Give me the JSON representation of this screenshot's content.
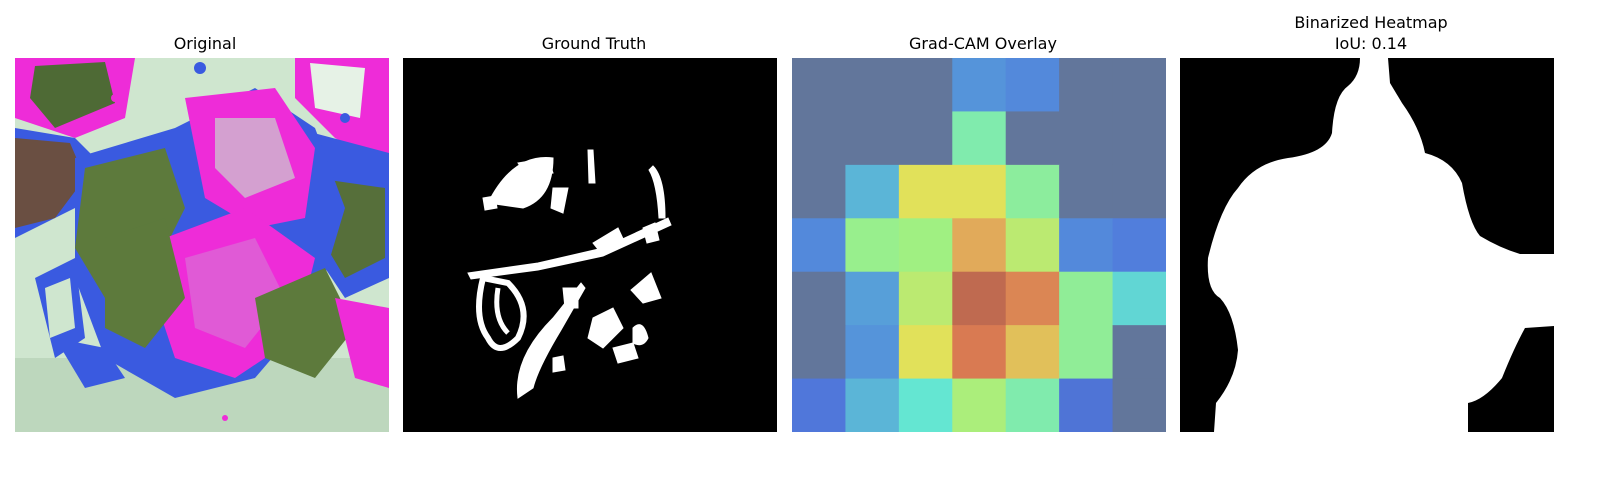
{
  "figure": {
    "panels": [
      {
        "title": "Original"
      },
      {
        "title": "Ground Truth"
      },
      {
        "title": "Grad-CAM Overlay"
      },
      {
        "title": "Binarized Heatmap",
        "subtitle": "IoU: 0.14"
      }
    ],
    "colors": {
      "background": "#ffffff",
      "mask_fg": "#ffffff",
      "mask_bg": "#000000",
      "leaf_pale": "#cfe6cf",
      "leaf_green": "#5d7a3c",
      "magenta": "#ee2cd8",
      "blue": "#3a5ae0",
      "brown": "#6a4f42"
    },
    "gradcam_grid": [
      [
        0.18,
        0.18,
        0.2,
        0.3,
        0.28,
        0.18,
        0.18
      ],
      [
        0.18,
        0.18,
        0.2,
        0.52,
        0.2,
        0.18,
        0.18
      ],
      [
        0.18,
        0.36,
        0.72,
        0.72,
        0.55,
        0.18,
        0.18
      ],
      [
        0.28,
        0.58,
        0.6,
        0.82,
        0.65,
        0.28,
        0.26
      ],
      [
        0.2,
        0.32,
        0.65,
        0.95,
        0.88,
        0.56,
        0.42
      ],
      [
        0.16,
        0.3,
        0.72,
        0.9,
        0.78,
        0.56,
        0.18
      ],
      [
        0.24,
        0.36,
        0.45,
        0.62,
        0.52,
        0.22,
        0.18
      ]
    ]
  }
}
